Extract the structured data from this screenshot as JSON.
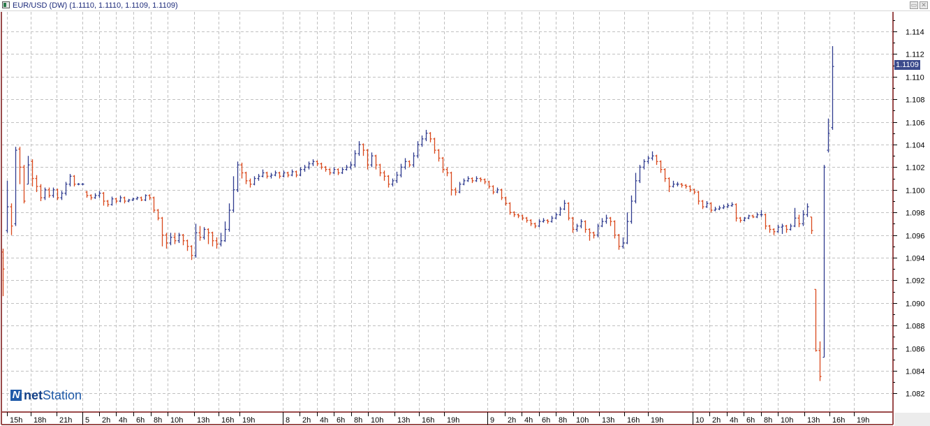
{
  "window": {
    "title": "EUR/USD (DW) (1.1110, 1.1110, 1.1109, 1.1109)",
    "minimize_label": "▭",
    "close_label": "✕"
  },
  "logo": {
    "mark": "N",
    "text_bold": "net",
    "text_regular": "Station"
  },
  "colors": {
    "up": "#2f3b8f",
    "down": "#d9481c",
    "grid": "#c0c0c0",
    "frame": "#9a4a4a",
    "price_tag_bg": "#3b4a8c"
  },
  "chart_data": {
    "type": "ohlc",
    "symbol": "EUR/USD",
    "timeframe": "DW",
    "last_price": "1.1109",
    "ylim": [
      1.081,
      1.1155
    ],
    "y_ticks": [
      "1.114",
      "1.112",
      "1.110",
      "1.108",
      "1.106",
      "1.104",
      "1.102",
      "1.100",
      "1.098",
      "1.096",
      "1.094",
      "1.092",
      "1.090",
      "1.088",
      "1.086",
      "1.084",
      "1.082"
    ],
    "x_ticks": [
      "15h",
      "18h",
      "21h",
      "5",
      "2h",
      "4h",
      "6h",
      "8h",
      "10h",
      "13h",
      "16h",
      "19h",
      "8",
      "2h",
      "4h",
      "6h",
      "8h",
      "10h",
      "13h",
      "16h",
      "19h",
      "9",
      "2h",
      "4h",
      "6h",
      "8h",
      "10h",
      "13h",
      "16h",
      "19h",
      "10",
      "2h",
      "4h",
      "6h",
      "8h",
      "10h",
      "13h",
      "16h",
      "19h"
    ],
    "day_ticks": [
      "5",
      "8",
      "9",
      "10"
    ],
    "grid": true,
    "bars_ohlc": [
      [
        1.0945,
        1.0948,
        1.0906,
        1.093
      ],
      [
        1.0964,
        1.1008,
        1.0962,
        1.0985
      ],
      [
        1.0985,
        1.0988,
        1.096,
        1.0968
      ],
      [
        1.097,
        1.1038,
        1.0968,
        1.1035
      ],
      [
        1.1036,
        1.1038,
        1.1005,
        1.102
      ],
      [
        1.102,
        1.1022,
        1.0988,
        1.099
      ],
      [
        1.1005,
        1.103,
        1.1005,
        1.1022
      ],
      [
        1.1025,
        1.1027,
        1.1003,
        1.101
      ],
      [
        1.101,
        1.1013,
        1.0998,
        1.1003
      ],
      [
        1.1003,
        1.1005,
        1.099,
        1.0993
      ],
      [
        1.0993,
        1.1002,
        1.0991,
        1.1
      ],
      [
        1.1,
        1.1002,
        1.0993,
        1.0995
      ],
      [
        1.0995,
        1.1002,
        1.0993,
        1.1
      ],
      [
        1.1,
        1.1001,
        1.0991,
        1.0993
      ],
      [
        1.0993,
        1.0999,
        1.0991,
        1.0997
      ],
      [
        1.0997,
        1.1007,
        1.0995,
        1.1005
      ],
      [
        1.1005,
        1.1014,
        1.1003,
        1.1012
      ],
      [
        1.1012,
        1.1013,
        1.1003,
        1.1005
      ],
      [
        1.1005,
        1.1006,
        1.1004,
        1.1005
      ],
      [
        1.1005,
        1.1006,
        1.1004,
        1.1005
      ],
      [
        1.0998,
        1.0999,
        1.0993,
        1.0995
      ],
      [
        1.0995,
        1.0996,
        1.0991,
        1.0993
      ],
      [
        1.0993,
        1.0997,
        1.0992,
        1.0995
      ],
      [
        1.0995,
        1.0999,
        1.0993,
        1.0997
      ],
      [
        1.0997,
        1.0998,
        1.0986,
        1.099
      ],
      [
        1.099,
        1.0991,
        1.0985,
        1.0987
      ],
      [
        1.0987,
        1.0994,
        1.0986,
        1.0992
      ],
      [
        1.0992,
        1.0993,
        1.0988,
        1.099
      ],
      [
        1.099,
        1.0995,
        1.0989,
        1.0993
      ],
      [
        1.0993,
        1.0994,
        1.0988,
        1.099
      ],
      [
        1.099,
        1.0992,
        1.0989,
        1.0991
      ],
      [
        1.0991,
        1.0993,
        1.099,
        1.0992
      ],
      [
        1.0992,
        1.0994,
        1.0991,
        1.0993
      ],
      [
        1.0993,
        1.0994,
        1.099,
        1.0991
      ],
      [
        1.0991,
        1.0996,
        1.099,
        1.0995
      ],
      [
        1.0995,
        1.0996,
        1.0991,
        1.0993
      ],
      [
        1.0993,
        1.0994,
        1.098,
        1.0982
      ],
      [
        1.0982,
        1.0983,
        1.0973,
        1.0975
      ],
      [
        1.0975,
        1.0976,
        1.095,
        1.096
      ],
      [
        1.096,
        1.0962,
        1.0948,
        1.0953
      ],
      [
        1.0953,
        1.0962,
        1.0951,
        1.0958
      ],
      [
        1.0958,
        1.0962,
        1.0952,
        1.0955
      ],
      [
        1.0955,
        1.0962,
        1.0953,
        1.096
      ],
      [
        1.096,
        1.0961,
        1.0951,
        1.0955
      ],
      [
        1.0955,
        1.0956,
        1.0946,
        1.095
      ],
      [
        1.095,
        1.0951,
        1.0938,
        1.0942
      ],
      [
        1.0942,
        1.097,
        1.094,
        1.0962
      ],
      [
        1.0962,
        1.0968,
        1.0955,
        1.0958
      ],
      [
        1.0958,
        1.0967,
        1.0956,
        1.0965
      ],
      [
        1.0965,
        1.0966,
        1.0952,
        1.0962
      ],
      [
        1.0962,
        1.0963,
        1.095,
        1.0955
      ],
      [
        1.0955,
        1.0958,
        1.0948,
        1.0952
      ],
      [
        1.0952,
        1.0962,
        1.095,
        1.0955
      ],
      [
        1.0955,
        1.0972,
        1.0954,
        1.0965
      ],
      [
        1.0965,
        1.0988,
        1.0963,
        1.0982
      ],
      [
        1.0982,
        1.1012,
        1.098,
        1.1
      ],
      [
        1.1,
        1.1025,
        1.0998,
        1.1022
      ],
      [
        1.1022,
        1.1024,
        1.101,
        1.1015
      ],
      [
        1.1015,
        1.1016,
        1.1005,
        1.1008
      ],
      [
        1.1008,
        1.101,
        1.1002,
        1.1005
      ],
      [
        1.1005,
        1.1012,
        1.1004,
        1.101
      ],
      [
        1.101,
        1.1014,
        1.1008,
        1.1012
      ],
      [
        1.1012,
        1.1018,
        1.1011,
        1.1015
      ],
      [
        1.1015,
        1.1016,
        1.101,
        1.1012
      ],
      [
        1.1012,
        1.1015,
        1.101,
        1.1013
      ],
      [
        1.1013,
        1.1017,
        1.1012,
        1.1015
      ],
      [
        1.1015,
        1.1016,
        1.101,
        1.1012
      ],
      [
        1.1012,
        1.1017,
        1.1011,
        1.1015
      ],
      [
        1.1015,
        1.1016,
        1.1011,
        1.1013
      ],
      [
        1.1013,
        1.1018,
        1.1012,
        1.1016
      ],
      [
        1.1016,
        1.1017,
        1.1011,
        1.1013
      ],
      [
        1.1013,
        1.102,
        1.1012,
        1.1018
      ],
      [
        1.1018,
        1.1022,
        1.1016,
        1.102
      ],
      [
        1.102,
        1.1025,
        1.1018,
        1.1023
      ],
      [
        1.1023,
        1.1027,
        1.1021,
        1.1025
      ],
      [
        1.1025,
        1.1026,
        1.1021,
        1.1023
      ],
      [
        1.1023,
        1.1024,
        1.1018,
        1.102
      ],
      [
        1.102,
        1.1021,
        1.1016,
        1.1018
      ],
      [
        1.1018,
        1.1019,
        1.1013,
        1.1015
      ],
      [
        1.1015,
        1.102,
        1.1014,
        1.1018
      ],
      [
        1.1018,
        1.1019,
        1.1013,
        1.1015
      ],
      [
        1.1015,
        1.102,
        1.1014,
        1.1018
      ],
      [
        1.1018,
        1.1022,
        1.1017,
        1.102
      ],
      [
        1.102,
        1.1025,
        1.1018,
        1.1022
      ],
      [
        1.1022,
        1.1035,
        1.102,
        1.1032
      ],
      [
        1.1032,
        1.1043,
        1.103,
        1.104
      ],
      [
        1.104,
        1.1041,
        1.103,
        1.1035
      ],
      [
        1.1035,
        1.1036,
        1.1018,
        1.1022
      ],
      [
        1.1022,
        1.1033,
        1.102,
        1.103
      ],
      [
        1.103,
        1.1031,
        1.1018,
        1.1022
      ],
      [
        1.1022,
        1.1023,
        1.1012,
        1.1015
      ],
      [
        1.1015,
        1.1017,
        1.1008,
        1.1012
      ],
      [
        1.1012,
        1.1013,
        1.1002,
        1.1005
      ],
      [
        1.1005,
        1.101,
        1.1003,
        1.1008
      ],
      [
        1.1008,
        1.1016,
        1.1006,
        1.1013
      ],
      [
        1.1013,
        1.1023,
        1.1011,
        1.102
      ],
      [
        1.102,
        1.1028,
        1.1018,
        1.1025
      ],
      [
        1.1025,
        1.1026,
        1.102,
        1.1022
      ],
      [
        1.1022,
        1.1033,
        1.102,
        1.103
      ],
      [
        1.103,
        1.1043,
        1.1028,
        1.104
      ],
      [
        1.104,
        1.1048,
        1.1038,
        1.1045
      ],
      [
        1.1045,
        1.1053,
        1.1043,
        1.105
      ],
      [
        1.105,
        1.1051,
        1.1042,
        1.1045
      ],
      [
        1.1045,
        1.1046,
        1.1032,
        1.1035
      ],
      [
        1.1035,
        1.1036,
        1.1025,
        1.1028
      ],
      [
        1.1028,
        1.1029,
        1.1015,
        1.1018
      ],
      [
        1.1018,
        1.102,
        1.1012,
        1.1015
      ],
      [
        1.1015,
        1.1016,
        1.0995,
        1.1
      ],
      [
        1.1,
        1.1002,
        1.0995,
        1.0998
      ],
      [
        1.0998,
        1.1007,
        1.0997,
        1.1005
      ],
      [
        1.1005,
        1.101,
        1.1004,
        1.1008
      ],
      [
        1.1008,
        1.1012,
        1.1007,
        1.101
      ],
      [
        1.101,
        1.1011,
        1.1006,
        1.1008
      ],
      [
        1.1008,
        1.1012,
        1.1007,
        1.101
      ],
      [
        1.101,
        1.1011,
        1.1007,
        1.1009
      ],
      [
        1.1009,
        1.101,
        1.1005,
        1.1007
      ],
      [
        1.1007,
        1.1008,
        1.1001,
        1.1003
      ],
      [
        1.1003,
        1.1004,
        1.0996,
        1.0998
      ],
      [
        1.0998,
        1.1002,
        1.0997,
        1.1
      ],
      [
        1.1,
        1.1001,
        1.0991,
        1.0993
      ],
      [
        1.0993,
        1.0994,
        1.0986,
        1.0988
      ],
      [
        1.0988,
        1.0989,
        1.0978,
        1.098
      ],
      [
        1.098,
        1.0981,
        1.0976,
        1.0978
      ],
      [
        1.0978,
        1.0979,
        1.0975,
        1.0977
      ],
      [
        1.0977,
        1.0978,
        1.0973,
        1.0975
      ],
      [
        1.0975,
        1.0976,
        1.0971,
        1.0973
      ],
      [
        1.0973,
        1.0974,
        1.0968,
        1.097
      ],
      [
        1.097,
        1.0971,
        1.0966,
        1.0968
      ],
      [
        1.0968,
        1.0974,
        1.0967,
        1.0972
      ],
      [
        1.0972,
        1.0975,
        1.0971,
        1.0973
      ],
      [
        1.0973,
        1.0974,
        1.097,
        1.0972
      ],
      [
        1.0972,
        1.0977,
        1.0971,
        1.0975
      ],
      [
        1.0975,
        1.098,
        1.0974,
        1.0978
      ],
      [
        1.0978,
        1.0985,
        1.0977,
        1.0983
      ],
      [
        1.0983,
        1.0991,
        1.0982,
        1.0988
      ],
      [
        1.0988,
        1.0989,
        1.0973,
        1.0975
      ],
      [
        1.0975,
        1.0976,
        1.0962,
        1.0965
      ],
      [
        1.0965,
        1.097,
        1.0963,
        1.0968
      ],
      [
        1.0968,
        1.0974,
        1.0966,
        1.0972
      ],
      [
        1.0972,
        1.0973,
        1.0962,
        1.0965
      ],
      [
        1.0965,
        1.0966,
        1.0955,
        1.0962
      ],
      [
        1.0962,
        1.0963,
        1.0957,
        1.096
      ],
      [
        1.096,
        1.097,
        1.0958,
        1.0968
      ],
      [
        1.0968,
        1.0975,
        1.0967,
        1.0972
      ],
      [
        1.0972,
        1.0978,
        1.097,
        1.0975
      ],
      [
        1.0975,
        1.0976,
        1.0968,
        1.0972
      ],
      [
        1.0972,
        1.0973,
        1.0957,
        1.096
      ],
      [
        1.096,
        1.0961,
        1.0947,
        1.095
      ],
      [
        1.095,
        1.0958,
        1.0948,
        1.0953
      ],
      [
        1.0953,
        1.098,
        1.0952,
        1.0972
      ],
      [
        1.0972,
        1.0995,
        1.097,
        1.099
      ],
      [
        1.099,
        1.1015,
        1.0988,
        1.1008
      ],
      [
        1.1008,
        1.1022,
        1.1006,
        1.102
      ],
      [
        1.102,
        1.1027,
        1.1018,
        1.1025
      ],
      [
        1.1025,
        1.103,
        1.1023,
        1.1028
      ],
      [
        1.1028,
        1.1034,
        1.1026,
        1.103
      ],
      [
        1.103,
        1.1031,
        1.1022,
        1.1025
      ],
      [
        1.1025,
        1.1026,
        1.1015,
        1.1018
      ],
      [
        1.1018,
        1.1019,
        1.1007,
        1.101
      ],
      [
        1.101,
        1.1011,
        1.0998,
        1.1003
      ],
      [
        1.1003,
        1.1008,
        1.1002,
        1.1005
      ],
      [
        1.1005,
        1.1007,
        1.1003,
        1.1005
      ],
      [
        1.1005,
        1.1006,
        1.1002,
        1.1004
      ],
      [
        1.1004,
        1.1005,
        1.1001,
        1.1003
      ],
      [
        1.1003,
        1.1004,
        1.0998,
        1.1
      ],
      [
        1.1,
        1.1001,
        1.0996,
        1.0998
      ],
      [
        1.0998,
        1.0999,
        1.0987,
        1.099
      ],
      [
        1.099,
        1.0991,
        1.0983,
        1.0985
      ],
      [
        1.0985,
        1.099,
        1.0984,
        1.0988
      ],
      [
        1.0988,
        1.0989,
        1.098,
        1.0982
      ],
      [
        1.0982,
        1.0985,
        1.0981,
        1.0983
      ],
      [
        1.0983,
        1.0986,
        1.0982,
        1.0984
      ],
      [
        1.0984,
        1.0987,
        1.0983,
        1.0985
      ],
      [
        1.0985,
        1.0988,
        1.0984,
        1.0986
      ],
      [
        1.0986,
        1.0989,
        1.0985,
        1.0987
      ],
      [
        1.0987,
        1.0988,
        1.0972,
        1.0975
      ],
      [
        1.0975,
        1.0976,
        1.0971,
        1.0973
      ],
      [
        1.0973,
        1.0976,
        1.0972,
        1.0975
      ],
      [
        1.0975,
        1.0978,
        1.0974,
        1.0977
      ],
      [
        1.0977,
        1.0978,
        1.0975,
        1.0976
      ],
      [
        1.0976,
        1.098,
        1.0975,
        1.0978
      ],
      [
        1.0978,
        1.0982,
        1.0976,
        1.0978
      ],
      [
        1.0978,
        1.0979,
        1.0965,
        1.0968
      ],
      [
        1.0968,
        1.0969,
        1.0962,
        1.0965
      ],
      [
        1.0965,
        1.0966,
        1.096,
        1.0963
      ],
      [
        1.0963,
        1.0969,
        1.0962,
        1.0967
      ],
      [
        1.0967,
        1.097,
        1.0961,
        1.0968
      ],
      [
        1.0968,
        1.0969,
        1.0962,
        1.0965
      ],
      [
        1.0965,
        1.097,
        1.0964,
        1.0968
      ],
      [
        1.0968,
        1.0984,
        1.0967,
        1.0975
      ],
      [
        1.0975,
        1.0978,
        1.0967,
        1.097
      ],
      [
        1.097,
        1.0982,
        1.0968,
        1.0978
      ],
      [
        1.0978,
        1.0988,
        1.0976,
        1.0985
      ],
      [
        1.0976,
        1.0976,
        1.0961,
        1.0964
      ],
      [
        1.0912,
        1.0912,
        1.0857,
        1.0858
      ],
      [
        1.0858,
        1.0866,
        1.0831,
        1.0835
      ],
      [
        1.0852,
        1.1022,
        1.0852,
        1.102
      ],
      [
        1.1035,
        1.1063,
        1.1033,
        1.105
      ],
      [
        1.1055,
        1.1127,
        1.1053,
        1.1109
      ]
    ]
  }
}
